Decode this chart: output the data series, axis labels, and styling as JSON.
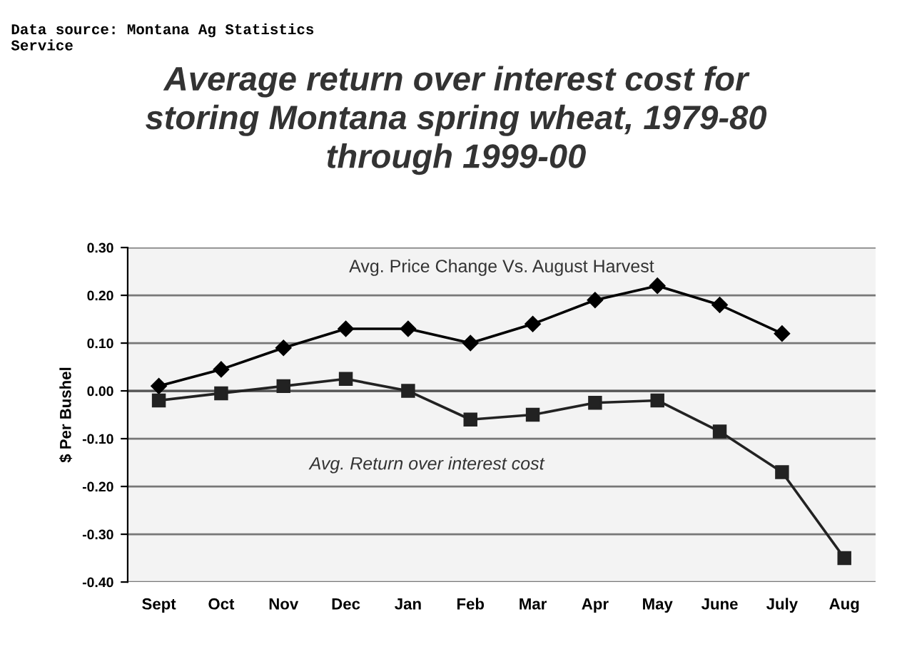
{
  "chart_data": {
    "type": "line",
    "title": "Average return over interest cost for\nstoring Montana spring wheat, 1979-80\nthrough 1999-00",
    "ylabel": "$ Per Bushel",
    "annotations": [
      "Data source: Montana Ag Statistics\nService"
    ],
    "categories": [
      "Sept",
      "Oct",
      "Nov",
      "Dec",
      "Jan",
      "Feb",
      "Mar",
      "Apr",
      "May",
      "June",
      "July",
      "Aug"
    ],
    "series": [
      {
        "name": "Avg. Price Change Vs. August Harvest",
        "color": "#000000",
        "marker": "diamond",
        "values": [
          0.01,
          0.045,
          0.09,
          0.13,
          0.13,
          0.1,
          0.14,
          0.19,
          0.22,
          0.18,
          0.12,
          null
        ]
      },
      {
        "name": "Avg. Return over interest cost",
        "color": "#222222",
        "marker": "square",
        "values": [
          -0.02,
          -0.005,
          0.01,
          0.025,
          0.0,
          -0.06,
          -0.05,
          -0.025,
          -0.02,
          -0.085,
          -0.17,
          -0.35
        ]
      }
    ],
    "ylim": [
      -0.4,
      0.3
    ],
    "yticks": [
      {
        "value": -0.4,
        "label": "-0.40"
      },
      {
        "value": -0.3,
        "label": "-0.30"
      },
      {
        "value": -0.2,
        "label": "-0.20"
      },
      {
        "value": -0.1,
        "label": "-0.10"
      },
      {
        "value": 0,
        "label": "0.00"
      },
      {
        "value": 0.1,
        "label": "0.10"
      },
      {
        "value": 0.2,
        "label": "0.20"
      },
      {
        "value": 0.3,
        "label": "0.30"
      }
    ],
    "grid": "y",
    "legend": false,
    "line_style": "solid"
  }
}
